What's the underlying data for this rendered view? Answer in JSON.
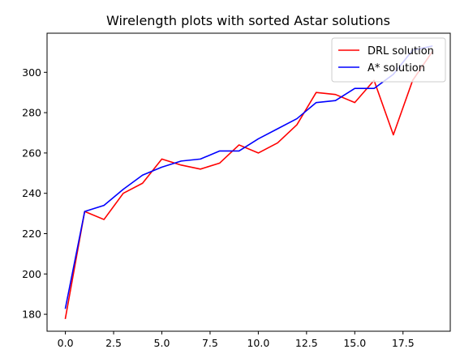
{
  "chart_data": {
    "type": "line",
    "title": "Wirelength plots with sorted Astar solutions",
    "xlabel": "",
    "ylabel": "",
    "xlim": [
      -0.95,
      19.95
    ],
    "ylim": [
      171.6,
      319.4
    ],
    "x_ticks": [
      0.0,
      2.5,
      5.0,
      7.5,
      10.0,
      12.5,
      15.0,
      17.5
    ],
    "x_tick_labels": [
      "0.0",
      "2.5",
      "5.0",
      "7.5",
      "10.0",
      "12.5",
      "15.0",
      "17.5"
    ],
    "y_ticks": [
      180,
      200,
      220,
      240,
      260,
      280,
      300
    ],
    "y_tick_labels": [
      "180",
      "200",
      "220",
      "240",
      "260",
      "280",
      "300"
    ],
    "grid": false,
    "legend_position": "top-right",
    "x": [
      0,
      1,
      2,
      3,
      4,
      5,
      6,
      7,
      8,
      9,
      10,
      11,
      12,
      13,
      14,
      15,
      16,
      17,
      18,
      19
    ],
    "series": [
      {
        "name": "DRL solution",
        "color": "#ff0000",
        "values": [
          178,
          231,
          227,
          240,
          245,
          257,
          254,
          252,
          255,
          264,
          260,
          265,
          274,
          290,
          289,
          285,
          296,
          269,
          296,
          310
        ]
      },
      {
        "name": "A* solution",
        "color": "#0000ff",
        "values": [
          183,
          231,
          234,
          242,
          249,
          253,
          256,
          257,
          261,
          261,
          267,
          272,
          277,
          285,
          286,
          292,
          292,
          299,
          311,
          313
        ]
      }
    ]
  }
}
